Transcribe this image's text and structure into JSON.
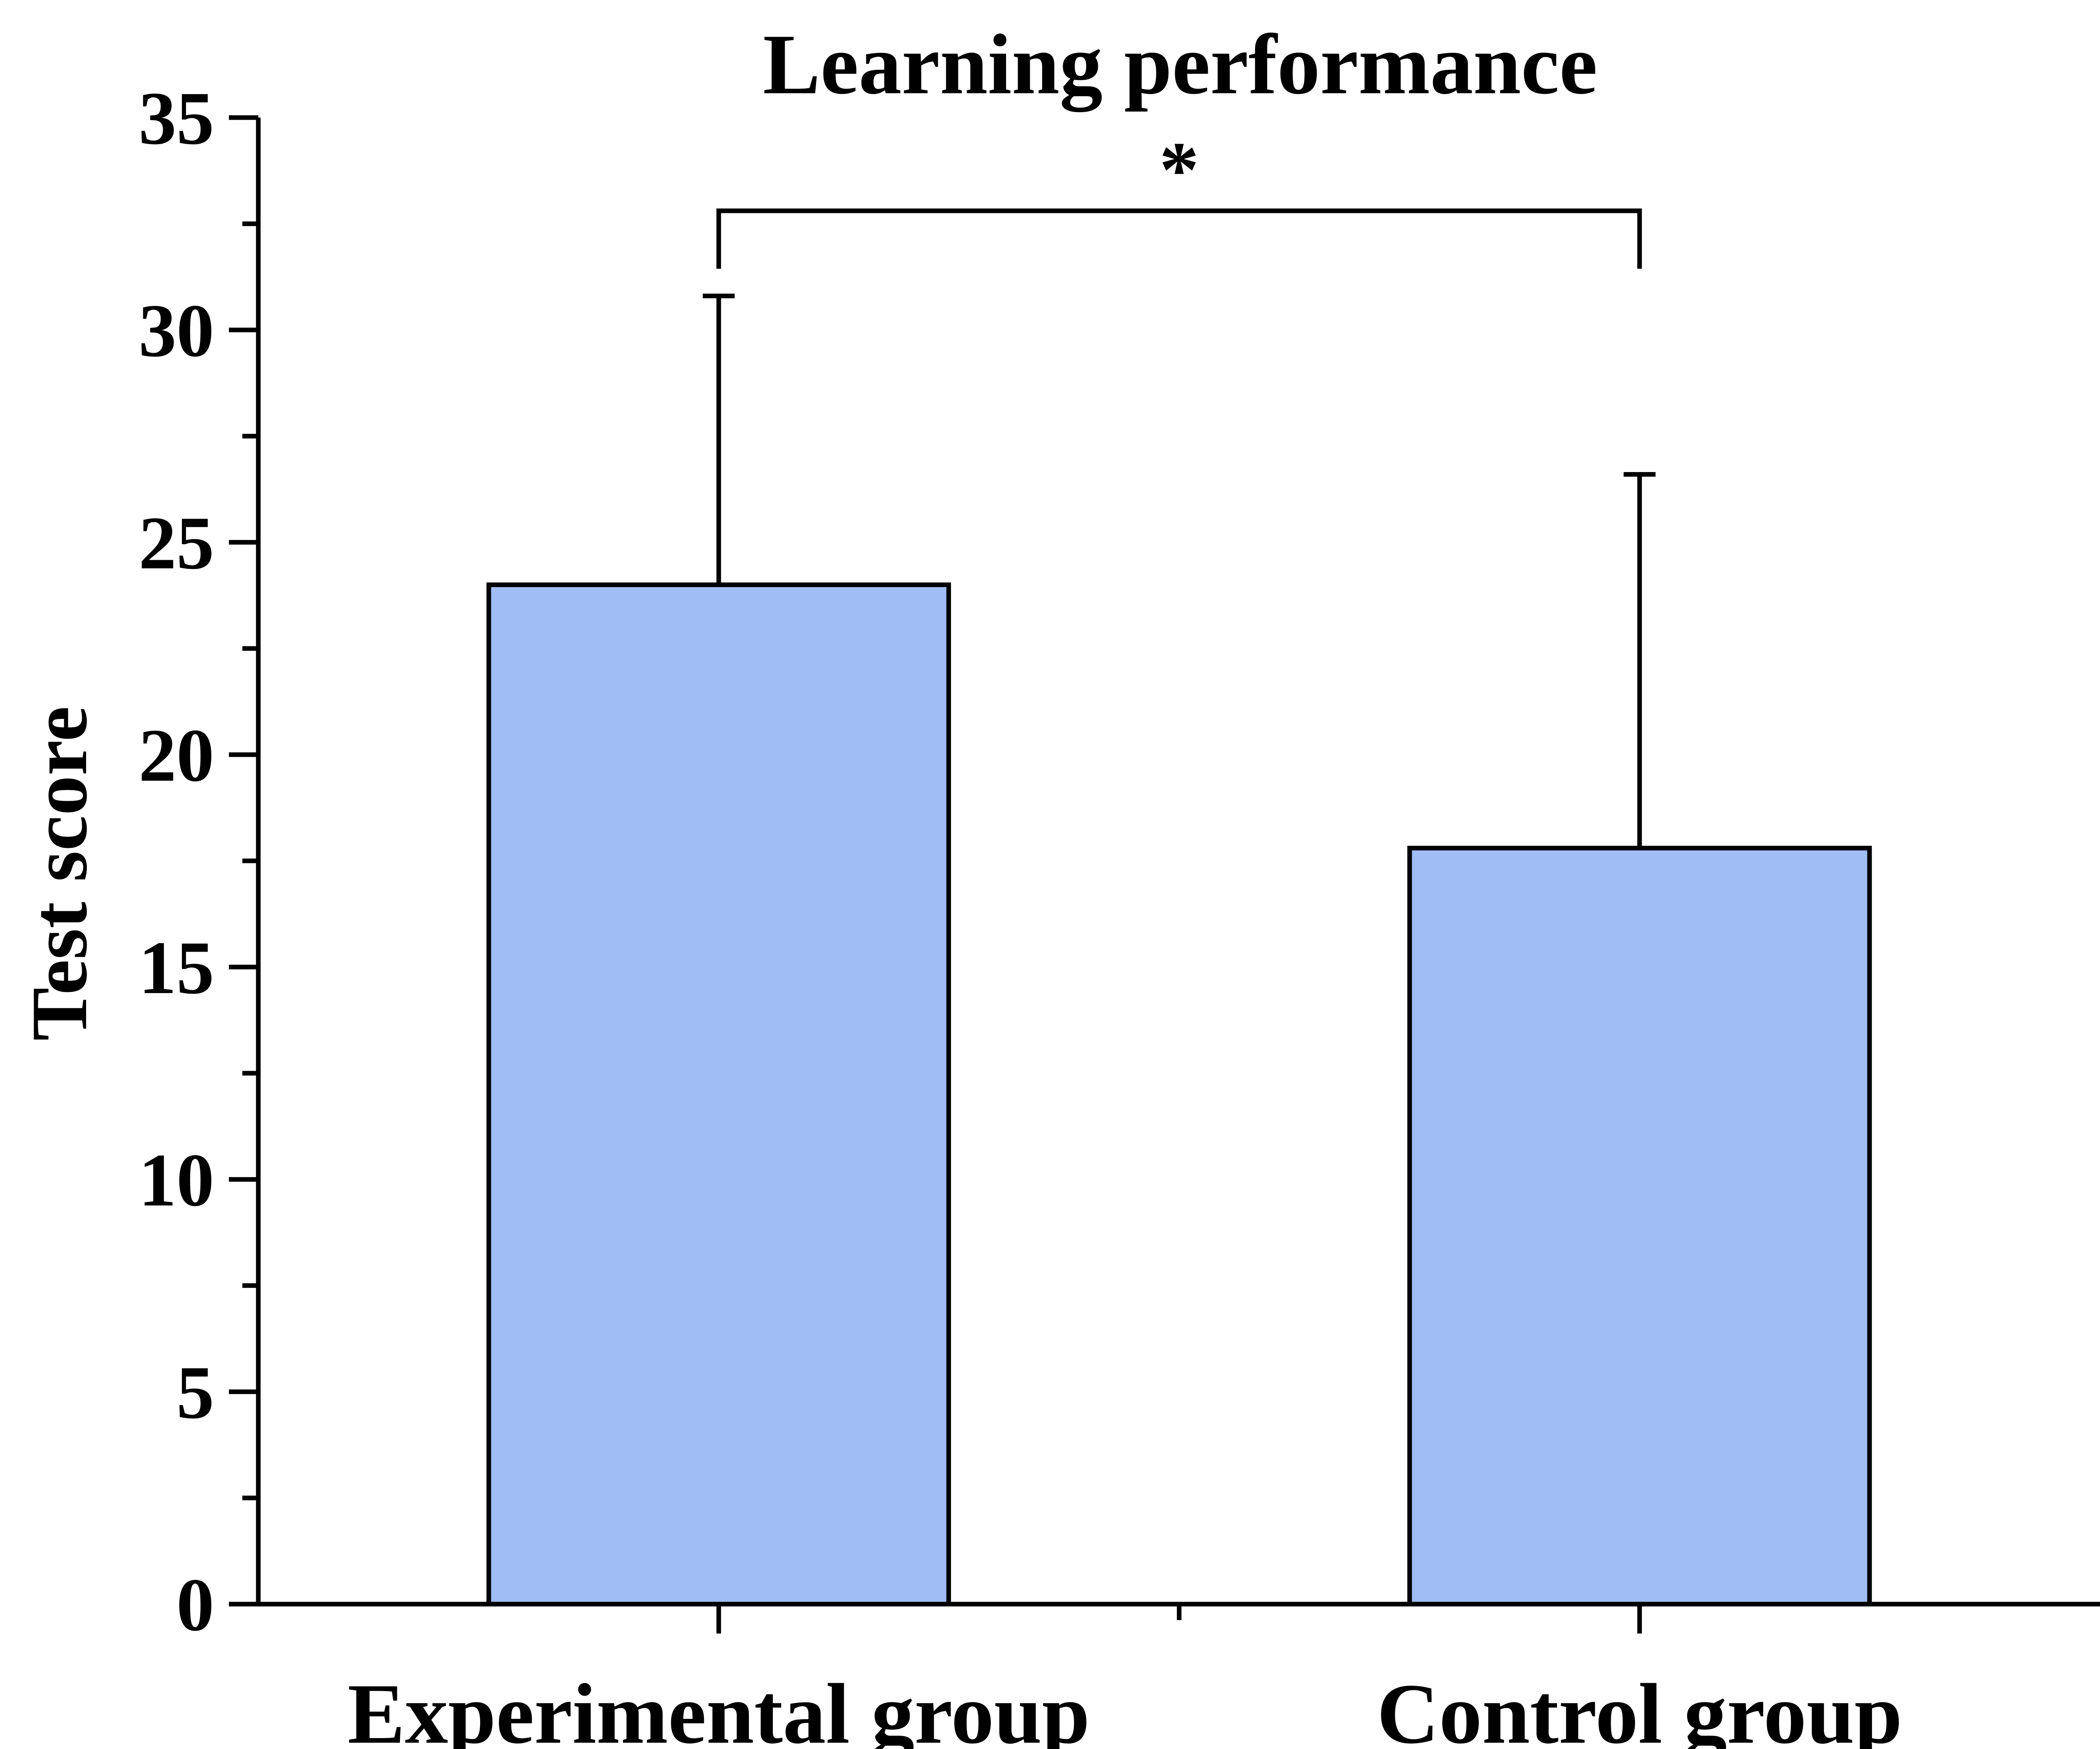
{
  "chart_data": {
    "type": "bar",
    "title": "Learning performance",
    "xlabel": "",
    "ylabel": "Test score",
    "categories": [
      "Experimental group",
      "Control group"
    ],
    "values": [
      24.0,
      17.8
    ],
    "error_upper": [
      30.8,
      26.6
    ],
    "ylim": [
      0,
      35
    ],
    "y_ticks": [
      "0",
      "5",
      "10",
      "15",
      "20",
      "25",
      "30",
      "35"
    ],
    "y_minor_step": 2.5,
    "grid": false,
    "legend": "none",
    "bar_color": "#a0bdf6",
    "bar_edge_color": "#000000",
    "significance": {
      "between": [
        "Experimental group",
        "Control group"
      ],
      "label": "*"
    }
  }
}
